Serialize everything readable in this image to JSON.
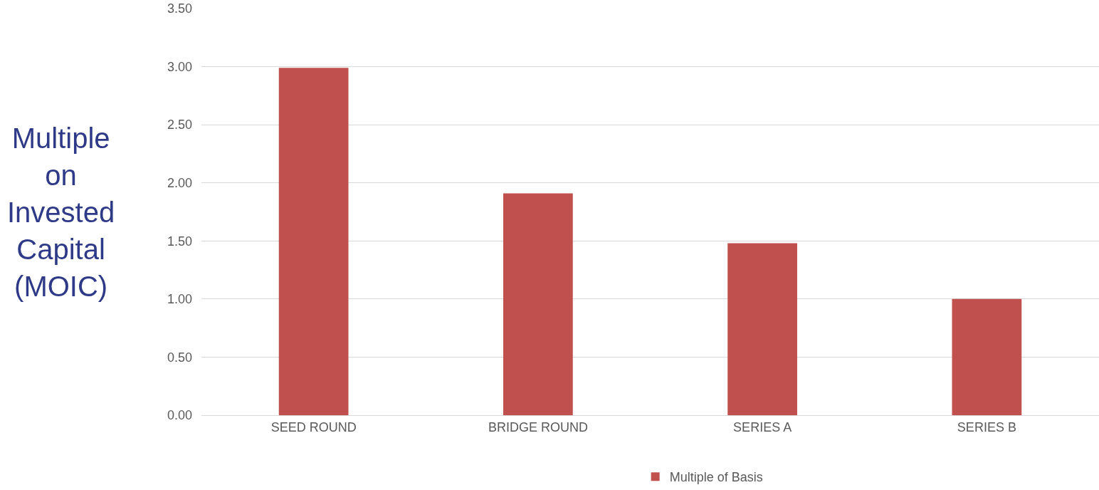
{
  "chart_data": {
    "type": "bar",
    "ylabel": "Multiple on Invested Capital (MOIC)",
    "categories": [
      "SEED ROUND",
      "BRIDGE ROUND",
      "SERIES A",
      "SERIES B"
    ],
    "series": [
      {
        "name": "Multiple of Basis",
        "color": "#c0504d",
        "values": [
          2.99,
          1.91,
          1.48,
          1.0
        ]
      }
    ],
    "ylim": [
      0,
      3.5
    ],
    "yticks": [
      {
        "value": 0,
        "label": "0.00"
      },
      {
        "value": 0.5,
        "label": "0.50"
      },
      {
        "value": 1,
        "label": "1.00"
      },
      {
        "value": 1.5,
        "label": "1.50"
      },
      {
        "value": 2,
        "label": "2.00"
      },
      {
        "value": 2.5,
        "label": "2.50"
      },
      {
        "value": 3,
        "label": "3.00"
      },
      {
        "value": 3.5,
        "label": "3.50"
      }
    ],
    "grid": "y",
    "legend": "bottom"
  }
}
